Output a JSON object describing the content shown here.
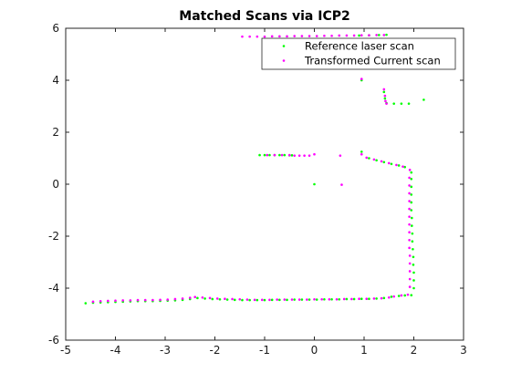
{
  "chart_data": {
    "type": "scatter",
    "title": "Matched Scans via ICP2",
    "xlabel": "",
    "ylabel": "",
    "xlim": [
      -5,
      3
    ],
    "ylim": [
      -6,
      6
    ],
    "xticks": [
      -5,
      -4,
      -3,
      -2,
      -1,
      0,
      1,
      2,
      3
    ],
    "yticks": [
      -6,
      -4,
      -2,
      0,
      2,
      4,
      6
    ],
    "legend_position": "top-right",
    "series": [
      {
        "name": "Reference laser scan",
        "color": "#00ff00",
        "points": [
          [
            -4.6,
            -4.58
          ],
          [
            -4.45,
            -4.56
          ],
          [
            -4.3,
            -4.55
          ],
          [
            -4.15,
            -4.54
          ],
          [
            -4.0,
            -4.53
          ],
          [
            -3.85,
            -4.52
          ],
          [
            -3.7,
            -4.51
          ],
          [
            -3.55,
            -4.5
          ],
          [
            -3.4,
            -4.5
          ],
          [
            -3.25,
            -4.5
          ],
          [
            -3.1,
            -4.49
          ],
          [
            -2.95,
            -4.48
          ],
          [
            -2.8,
            -4.47
          ],
          [
            -2.65,
            -4.45
          ],
          [
            -2.5,
            -4.42
          ],
          [
            -2.35,
            -4.38
          ],
          [
            -2.2,
            -4.4
          ],
          [
            -2.05,
            -4.42
          ],
          [
            -1.9,
            -4.43
          ],
          [
            -1.75,
            -4.44
          ],
          [
            -1.6,
            -4.45
          ],
          [
            -1.45,
            -4.46
          ],
          [
            -1.3,
            -4.46
          ],
          [
            -1.15,
            -4.46
          ],
          [
            -1.0,
            -4.46
          ],
          [
            -0.85,
            -4.45
          ],
          [
            -0.7,
            -4.45
          ],
          [
            -0.55,
            -4.45
          ],
          [
            -0.4,
            -4.44
          ],
          [
            -0.25,
            -4.44
          ],
          [
            -0.1,
            -4.44
          ],
          [
            0.05,
            -4.44
          ],
          [
            0.2,
            -4.43
          ],
          [
            0.35,
            -4.43
          ],
          [
            0.5,
            -4.43
          ],
          [
            0.65,
            -4.42
          ],
          [
            0.8,
            -4.42
          ],
          [
            0.95,
            -4.41
          ],
          [
            1.1,
            -4.41
          ],
          [
            1.25,
            -4.4
          ],
          [
            1.4,
            -4.38
          ],
          [
            1.55,
            -4.33
          ],
          [
            1.7,
            -4.3
          ],
          [
            1.82,
            -4.28
          ],
          [
            1.95,
            -4.27
          ],
          [
            2.0,
            -4.0
          ],
          [
            2.0,
            -3.7
          ],
          [
            2.0,
            -3.4
          ],
          [
            1.99,
            -3.1
          ],
          [
            1.99,
            -2.8
          ],
          [
            1.98,
            -2.5
          ],
          [
            1.97,
            -2.2
          ],
          [
            1.97,
            -1.9
          ],
          [
            1.96,
            -1.6
          ],
          [
            1.96,
            -1.3
          ],
          [
            1.95,
            -1.0
          ],
          [
            1.95,
            -0.7
          ],
          [
            1.95,
            -0.4
          ],
          [
            1.95,
            -0.1
          ],
          [
            1.95,
            0.2
          ],
          [
            1.95,
            0.45
          ],
          [
            0.95,
            1.25
          ],
          [
            1.1,
            1.0
          ],
          [
            1.25,
            0.92
          ],
          [
            1.4,
            0.85
          ],
          [
            1.55,
            0.78
          ],
          [
            1.7,
            0.72
          ],
          [
            1.82,
            0.66
          ],
          [
            -1.1,
            1.12
          ],
          [
            -1.0,
            1.12
          ],
          [
            -0.9,
            1.12
          ],
          [
            -0.8,
            1.12
          ],
          [
            -0.7,
            1.12
          ],
          [
            -0.6,
            1.12
          ],
          [
            -0.5,
            1.11
          ],
          [
            -0.45,
            1.11
          ],
          [
            0.0,
            0.0
          ],
          [
            1.4,
            3.55
          ],
          [
            1.42,
            3.3
          ],
          [
            1.45,
            3.12
          ],
          [
            1.6,
            3.1
          ],
          [
            1.75,
            3.1
          ],
          [
            1.9,
            3.1
          ],
          [
            2.2,
            3.25
          ],
          [
            0.95,
            4.0
          ],
          [
            0.9,
            5.72
          ],
          [
            1.1,
            5.73
          ],
          [
            1.3,
            5.74
          ],
          [
            1.45,
            5.75
          ]
        ]
      },
      {
        "name": "Transformed Current scan",
        "color": "#ff00ff",
        "points": [
          [
            -4.45,
            -4.52
          ],
          [
            -4.3,
            -4.5
          ],
          [
            -4.15,
            -4.49
          ],
          [
            -4.0,
            -4.48
          ],
          [
            -3.85,
            -4.47
          ],
          [
            -3.7,
            -4.47
          ],
          [
            -3.55,
            -4.46
          ],
          [
            -3.4,
            -4.46
          ],
          [
            -3.25,
            -4.46
          ],
          [
            -3.1,
            -4.45
          ],
          [
            -2.95,
            -4.44
          ],
          [
            -2.8,
            -4.42
          ],
          [
            -2.65,
            -4.4
          ],
          [
            -2.5,
            -4.37
          ],
          [
            -2.4,
            -4.34
          ],
          [
            -2.25,
            -4.36
          ],
          [
            -2.1,
            -4.38
          ],
          [
            -1.95,
            -4.4
          ],
          [
            -1.8,
            -4.41
          ],
          [
            -1.65,
            -4.42
          ],
          [
            -1.5,
            -4.43
          ],
          [
            -1.35,
            -4.44
          ],
          [
            -1.2,
            -4.45
          ],
          [
            -1.05,
            -4.45
          ],
          [
            -0.9,
            -4.45
          ],
          [
            -0.75,
            -4.44
          ],
          [
            -0.6,
            -4.44
          ],
          [
            -0.45,
            -4.44
          ],
          [
            -0.3,
            -4.44
          ],
          [
            -0.15,
            -4.44
          ],
          [
            0.0,
            -4.43
          ],
          [
            0.15,
            -4.43
          ],
          [
            0.3,
            -4.43
          ],
          [
            0.45,
            -4.43
          ],
          [
            0.6,
            -4.42
          ],
          [
            0.75,
            -4.42
          ],
          [
            0.9,
            -4.41
          ],
          [
            1.05,
            -4.41
          ],
          [
            1.2,
            -4.4
          ],
          [
            1.35,
            -4.39
          ],
          [
            1.5,
            -4.36
          ],
          [
            1.6,
            -4.32
          ],
          [
            1.75,
            -4.28
          ],
          [
            1.88,
            -4.25
          ],
          [
            1.92,
            -3.95
          ],
          [
            1.92,
            -3.65
          ],
          [
            1.92,
            -3.35
          ],
          [
            1.92,
            -3.05
          ],
          [
            1.92,
            -2.75
          ],
          [
            1.91,
            -2.45
          ],
          [
            1.91,
            -2.15
          ],
          [
            1.91,
            -1.85
          ],
          [
            1.91,
            -1.55
          ],
          [
            1.91,
            -1.25
          ],
          [
            1.91,
            -0.95
          ],
          [
            1.91,
            -0.65
          ],
          [
            1.91,
            -0.35
          ],
          [
            1.91,
            -0.05
          ],
          [
            1.91,
            0.25
          ],
          [
            1.92,
            0.55
          ],
          [
            0.95,
            1.15
          ],
          [
            1.05,
            1.02
          ],
          [
            1.2,
            0.95
          ],
          [
            1.35,
            0.88
          ],
          [
            1.5,
            0.81
          ],
          [
            1.65,
            0.74
          ],
          [
            1.78,
            0.68
          ],
          [
            -0.95,
            1.12
          ],
          [
            -0.8,
            1.12
          ],
          [
            -0.65,
            1.12
          ],
          [
            -0.5,
            1.12
          ],
          [
            -0.4,
            1.1
          ],
          [
            -0.3,
            1.1
          ],
          [
            -0.2,
            1.1
          ],
          [
            -0.1,
            1.1
          ],
          [
            0.0,
            1.15
          ],
          [
            0.55,
            -0.02
          ],
          [
            0.52,
            1.1
          ],
          [
            1.4,
            3.65
          ],
          [
            1.42,
            3.4
          ],
          [
            1.43,
            3.2
          ],
          [
            1.45,
            3.1
          ],
          [
            0.95,
            4.05
          ],
          [
            -1.45,
            5.68
          ],
          [
            -1.3,
            5.68
          ],
          [
            -1.15,
            5.68
          ],
          [
            -1.0,
            5.68
          ],
          [
            -0.85,
            5.69
          ],
          [
            -0.7,
            5.69
          ],
          [
            -0.55,
            5.69
          ],
          [
            -0.4,
            5.7
          ],
          [
            -0.25,
            5.7
          ],
          [
            -0.1,
            5.7
          ],
          [
            0.05,
            5.7
          ],
          [
            0.2,
            5.71
          ],
          [
            0.35,
            5.71
          ],
          [
            0.5,
            5.72
          ],
          [
            0.65,
            5.72
          ],
          [
            0.8,
            5.72
          ],
          [
            0.95,
            5.73
          ],
          [
            1.1,
            5.73
          ],
          [
            1.25,
            5.74
          ],
          [
            1.4,
            5.74
          ]
        ]
      }
    ]
  }
}
